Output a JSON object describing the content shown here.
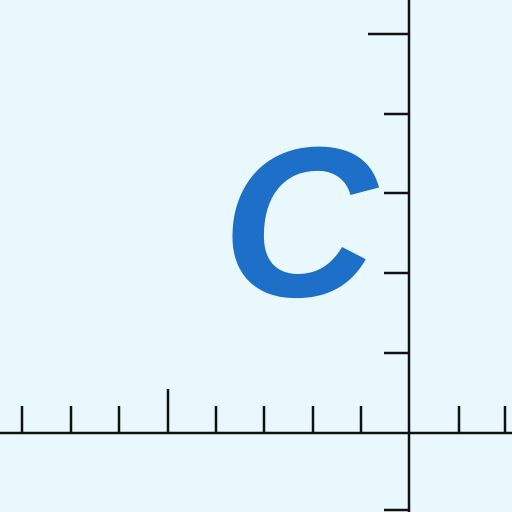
{
  "canvas": {
    "background_color": "#e8f8fc",
    "axis_color": "#111111"
  },
  "label": {
    "text": "C",
    "color": "#1e6fc8"
  }
}
